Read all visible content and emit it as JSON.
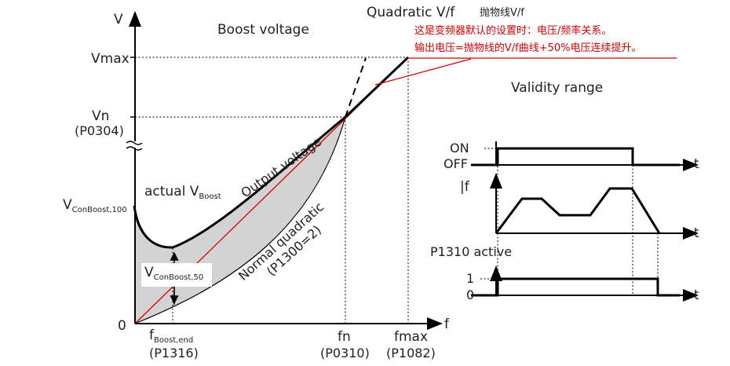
{
  "title_boost": "Boost voltage",
  "title_quadratic": "Quadratic V/f",
  "title_validity": "Validity range",
  "annotation": {
    "line1": "抛物线V/f",
    "line2": "这是变频器默认的设置时：电压/频率关系。",
    "line3": "输出电压=抛物线的V/f曲线+50%电压连续提升。"
  },
  "y_axis": {
    "label": "V",
    "vmax": "Vmax",
    "vn": "Vn",
    "vn_param": "(P0304)",
    "vcon100_main": "V",
    "vcon100_sub": "ConBoost,100",
    "zero": "0"
  },
  "x_axis": {
    "label": "f",
    "fboost_main": "f",
    "fboost_sub": "Boost,end",
    "fboost_param": "(P1316)",
    "fn": "fn",
    "fn_param": "(P0310)",
    "fmax": "fmax",
    "fmax_param": "(P1082)"
  },
  "curves": {
    "actual_main": "actual V",
    "actual_sub": "Boost",
    "output_voltage": "Output voltage",
    "normal_quadratic": "Normal quadratic",
    "normal_param": "(P1300=2)",
    "vcon50_main": "V",
    "vcon50_sub": "ConBoost,50"
  },
  "timing": {
    "on": "ON",
    "off": "OFF",
    "t": "t",
    "f_label": "f",
    "p1310": "P1310 active",
    "one": "1",
    "zero": "0"
  },
  "colors": {
    "annotation": "#d40000",
    "fill": "#d3d3d3",
    "ink": "#000000"
  }
}
